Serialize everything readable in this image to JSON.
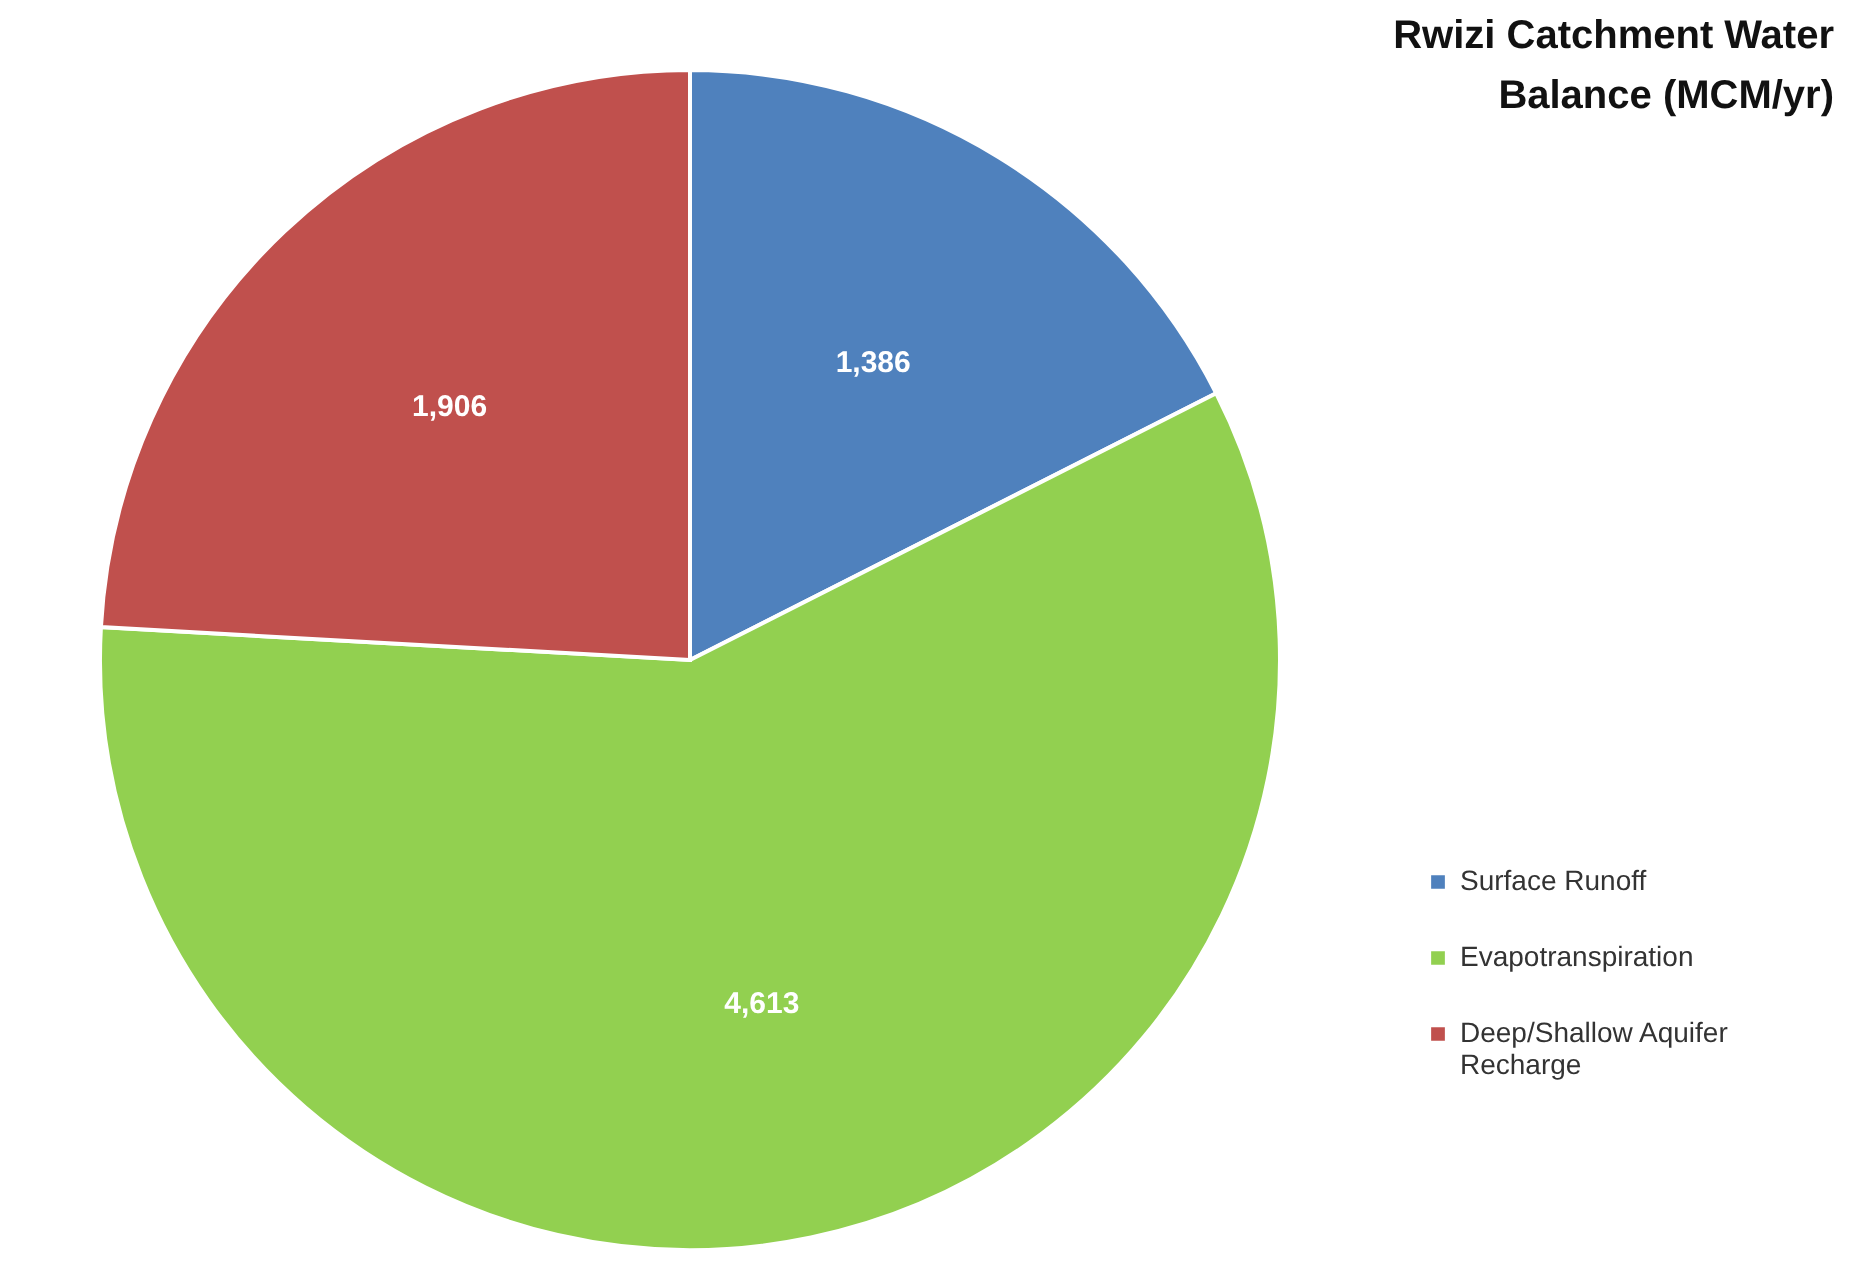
{
  "chart_data": {
    "type": "pie",
    "title": "Rwizi Catchment Water Balance (MCM/yr)",
    "categories": [
      "Surface Runoff",
      "Evapotranspiration",
      "Deep/Shallow Aquifer Recharge"
    ],
    "values": [
      1386,
      4613,
      1906
    ],
    "colors": [
      "#4f81bd",
      "#92d050",
      "#c0504d"
    ],
    "value_labels": [
      "1,386",
      "4,613",
      "1,906"
    ],
    "legend": "right"
  }
}
